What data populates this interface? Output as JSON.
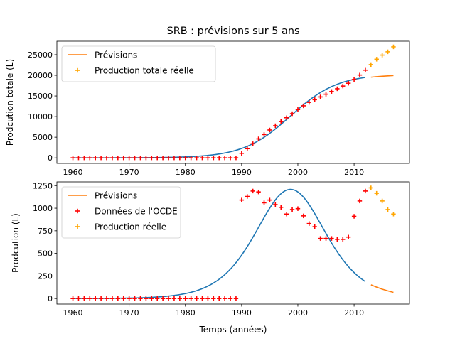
{
  "figure": {
    "title": "SRB : prévisions sur 5 ans"
  },
  "chart_data": [
    {
      "type": "line",
      "title": "",
      "xlabel": "",
      "ylabel": "Prodcution totale (L)",
      "xlim": [
        1957.15,
        2019.85
      ],
      "ylim": [
        -1346,
        28266
      ],
      "xticks": [
        1960,
        1970,
        1980,
        1990,
        2000,
        2010
      ],
      "yticks": [
        0,
        5000,
        10000,
        15000,
        20000,
        25000
      ],
      "grid": false,
      "legend": "top-left",
      "series": [
        {
          "name": "Prévisions",
          "kind": "line",
          "color": "#ff7f0e",
          "x": [
            2013,
            2014,
            2015,
            2016,
            2017
          ],
          "y": [
            19550,
            19680,
            19780,
            19870,
            19940
          ]
        },
        {
          "name": "Production totale réelle",
          "kind": "scatter",
          "color": "#ffa500",
          "x": [
            2013,
            2014,
            2015,
            2016,
            2017
          ],
          "y": [
            22600,
            23900,
            24900,
            25700,
            26900
          ]
        },
        {
          "name": "",
          "kind": "scatter",
          "color": "#ff0000",
          "x": [
            1960,
            1961,
            1962,
            1963,
            1964,
            1965,
            1966,
            1967,
            1968,
            1969,
            1970,
            1971,
            1972,
            1973,
            1974,
            1975,
            1976,
            1977,
            1978,
            1979,
            1980,
            1981,
            1982,
            1983,
            1984,
            1985,
            1986,
            1987,
            1988,
            1989,
            1990,
            1991,
            1992,
            1993,
            1994,
            1995,
            1996,
            1997,
            1998,
            1999,
            2000,
            2001,
            2002,
            2003,
            2004,
            2005,
            2006,
            2007,
            2008,
            2009,
            2010,
            2011,
            2012
          ],
          "y": [
            0,
            0,
            0,
            0,
            0,
            0,
            0,
            0,
            0,
            0,
            0,
            0,
            0,
            0,
            0,
            0,
            0,
            0,
            0,
            0,
            0,
            0,
            0,
            0,
            0,
            0,
            0,
            0,
            0,
            0,
            1100,
            2230,
            3420,
            4600,
            5650,
            6750,
            7780,
            8790,
            9720,
            10700,
            11700,
            12610,
            13440,
            14100,
            14760,
            15420,
            16080,
            16740,
            17400,
            18080,
            18980,
            20060,
            21250
          ]
        },
        {
          "name": "",
          "kind": "line",
          "color": "#1f77b4",
          "model": "logistic",
          "K": 20300,
          "midpoint": 1998.7,
          "scale": 4.2,
          "x_range": [
            1960,
            2012
          ]
        }
      ]
    },
    {
      "type": "line",
      "title": "",
      "xlabel": "Temps (années)",
      "ylabel": "Prodcution (L)",
      "xlim": [
        1957.15,
        2019.85
      ],
      "ylim": [
        -61.5,
        1291.5
      ],
      "xticks": [
        1960,
        1970,
        1980,
        1990,
        2000,
        2010
      ],
      "yticks": [
        0,
        250,
        500,
        750,
        1000,
        1250
      ],
      "grid": false,
      "legend": "top-left",
      "series": [
        {
          "name": "Prévisions",
          "kind": "line",
          "color": "#ff7f0e",
          "x": [
            2013,
            2014,
            2015,
            2016,
            2017
          ],
          "y": [
            152,
            126,
            104,
            85,
            68
          ]
        },
        {
          "name": "Données de l'OCDE",
          "kind": "scatter",
          "color": "#ff0000",
          "x": [
            1960,
            1961,
            1962,
            1963,
            1964,
            1965,
            1966,
            1967,
            1968,
            1969,
            1970,
            1971,
            1972,
            1973,
            1974,
            1975,
            1976,
            1977,
            1978,
            1979,
            1980,
            1981,
            1982,
            1983,
            1984,
            1985,
            1986,
            1987,
            1988,
            1989,
            1990,
            1991,
            1992,
            1993,
            1994,
            1995,
            1996,
            1997,
            1998,
            1999,
            2000,
            2001,
            2002,
            2003,
            2004,
            2005,
            2006,
            2007,
            2008,
            2009,
            2010,
            2011,
            2012
          ],
          "y": [
            0,
            0,
            0,
            0,
            0,
            0,
            0,
            0,
            0,
            0,
            0,
            0,
            0,
            0,
            0,
            0,
            0,
            0,
            0,
            0,
            0,
            0,
            0,
            0,
            0,
            0,
            0,
            0,
            0,
            0,
            1090,
            1130,
            1190,
            1180,
            1060,
            1090,
            1040,
            1010,
            935,
            985,
            995,
            915,
            830,
            795,
            665,
            665,
            665,
            655,
            655,
            680,
            910,
            1080,
            1190
          ]
        },
        {
          "name": "Production réelle",
          "kind": "scatter",
          "color": "#ffa500",
          "x": [
            2013,
            2014,
            2015,
            2016,
            2017
          ],
          "y": [
            1225,
            1165,
            1080,
            985,
            935
          ]
        },
        {
          "name": "",
          "kind": "line",
          "color": "#1f77b4",
          "model": "logistic-derivative",
          "K": 20300,
          "midpoint": 1998.7,
          "scale": 4.2,
          "x_range": [
            1960,
            2012
          ]
        }
      ]
    }
  ]
}
